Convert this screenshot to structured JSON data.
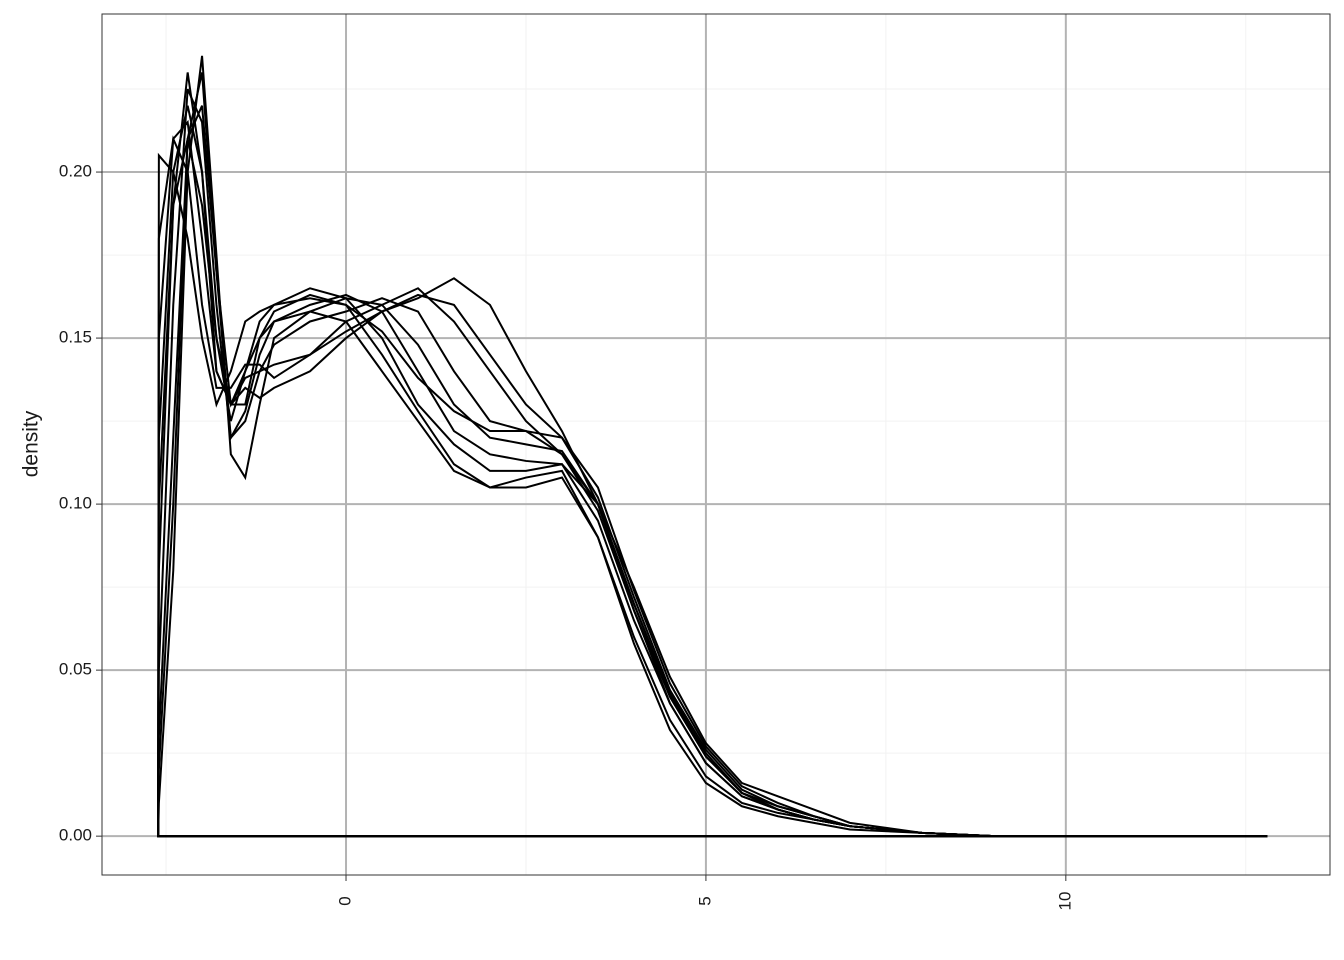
{
  "chart_data": {
    "type": "line",
    "y_label": "density",
    "x": [
      -2.61,
      -2.6,
      -2.4,
      -2.2,
      -2.0,
      -1.8,
      -1.6,
      -1.4,
      -1.2,
      -1.0,
      -0.5,
      0,
      0.5,
      1,
      1.5,
      2,
      2.5,
      3,
      3.5,
      4,
      4.5,
      5,
      5.5,
      6,
      6.5,
      7,
      8,
      9,
      10,
      11,
      12,
      12.8
    ],
    "series": [
      {
        "color": "#000000",
        "values": [
          0,
          0.205,
          0.2,
          0.18,
          0.15,
          0.13,
          0.14,
          0.155,
          0.158,
          0.16,
          0.162,
          0.16,
          0.145,
          0.128,
          0.112,
          0.105,
          0.105,
          0.108,
          0.09,
          0.06,
          0.035,
          0.018,
          0.01,
          0.007,
          0.005,
          0.003,
          0.001,
          0,
          0,
          0,
          0,
          0
        ]
      },
      {
        "color": "#000000",
        "values": [
          0,
          0.12,
          0.2,
          0.22,
          0.2,
          0.15,
          0.125,
          0.14,
          0.155,
          0.16,
          0.165,
          0.162,
          0.15,
          0.13,
          0.118,
          0.11,
          0.11,
          0.112,
          0.095,
          0.065,
          0.04,
          0.022,
          0.012,
          0.008,
          0.005,
          0.003,
          0.001,
          0,
          0,
          0,
          0,
          0
        ]
      },
      {
        "color": "#000000",
        "values": [
          0,
          0.05,
          0.16,
          0.225,
          0.215,
          0.16,
          0.12,
          0.128,
          0.145,
          0.155,
          0.16,
          0.163,
          0.158,
          0.14,
          0.122,
          0.115,
          0.113,
          0.112,
          0.1,
          0.068,
          0.042,
          0.024,
          0.013,
          0.008,
          0.005,
          0.003,
          0.001,
          0,
          0,
          0,
          0,
          0
        ]
      },
      {
        "color": "#000000",
        "values": [
          0,
          0.01,
          0.08,
          0.2,
          0.235,
          0.175,
          0.115,
          0.108,
          0.13,
          0.15,
          0.158,
          0.162,
          0.16,
          0.148,
          0.13,
          0.12,
          0.118,
          0.116,
          0.1,
          0.07,
          0.043,
          0.025,
          0.013,
          0.008,
          0.005,
          0.003,
          0.001,
          0,
          0,
          0,
          0,
          0
        ]
      },
      {
        "color": "#000000",
        "values": [
          0,
          0.02,
          0.1,
          0.21,
          0.23,
          0.17,
          0.12,
          0.125,
          0.14,
          0.148,
          0.155,
          0.158,
          0.162,
          0.158,
          0.14,
          0.125,
          0.122,
          0.12,
          0.102,
          0.072,
          0.044,
          0.026,
          0.014,
          0.009,
          0.006,
          0.003,
          0.001,
          0,
          0,
          0,
          0,
          0
        ]
      },
      {
        "color": "#000000",
        "values": [
          0,
          0.15,
          0.21,
          0.215,
          0.18,
          0.14,
          0.13,
          0.138,
          0.14,
          0.142,
          0.145,
          0.155,
          0.16,
          0.165,
          0.155,
          0.14,
          0.125,
          0.115,
          0.1,
          0.07,
          0.042,
          0.024,
          0.013,
          0.009,
          0.006,
          0.003,
          0.001,
          0,
          0,
          0,
          0,
          0
        ]
      },
      {
        "color": "#000000",
        "values": [
          0,
          0.18,
          0.21,
          0.2,
          0.16,
          0.135,
          0.135,
          0.142,
          0.142,
          0.138,
          0.145,
          0.152,
          0.158,
          0.163,
          0.16,
          0.145,
          0.13,
          0.12,
          0.105,
          0.074,
          0.046,
          0.027,
          0.015,
          0.01,
          0.006,
          0.003,
          0.001,
          0,
          0,
          0,
          0,
          0
        ]
      },
      {
        "color": "#000000",
        "values": [
          0,
          0.08,
          0.19,
          0.23,
          0.2,
          0.14,
          0.13,
          0.135,
          0.132,
          0.135,
          0.14,
          0.15,
          0.158,
          0.162,
          0.168,
          0.16,
          0.14,
          0.122,
          0.1,
          0.075,
          0.048,
          0.028,
          0.016,
          0.012,
          0.008,
          0.004,
          0.001,
          0,
          0,
          0,
          0,
          0
        ]
      },
      {
        "color": "#000000",
        "values": [
          0,
          0.03,
          0.12,
          0.21,
          0.22,
          0.17,
          0.13,
          0.13,
          0.15,
          0.158,
          0.163,
          0.16,
          0.152,
          0.138,
          0.128,
          0.122,
          0.122,
          0.115,
          0.098,
          0.068,
          0.04,
          0.022,
          0.012,
          0.008,
          0.005,
          0.003,
          0.001,
          0,
          0,
          0,
          0,
          0
        ]
      },
      {
        "color": "#000000",
        "values": [
          0,
          0.1,
          0.19,
          0.21,
          0.19,
          0.15,
          0.13,
          0.14,
          0.15,
          0.155,
          0.158,
          0.155,
          0.14,
          0.125,
          0.11,
          0.105,
          0.108,
          0.11,
          0.09,
          0.058,
          0.032,
          0.016,
          0.009,
          0.006,
          0.004,
          0.002,
          0.001,
          0,
          0,
          0,
          0,
          0
        ]
      }
    ],
    "xlim": [
      -3.39,
      13.67
    ],
    "ylim": [
      -0.0117,
      0.2476
    ],
    "xticks": [
      0,
      5,
      10
    ],
    "yticks": [
      {
        "value": 0,
        "label": "0.00"
      },
      0.05,
      {
        "value": 0.1,
        "label": "0.10"
      },
      0.15,
      {
        "value": 0.2,
        "label": "0.20"
      }
    ],
    "x_minor_ticks": [
      -2.5,
      2.5,
      7.5,
      12.5
    ],
    "y_minor_ticks": [
      0.025,
      0.075,
      0.125,
      0.175,
      0.225
    ],
    "grid": true
  }
}
